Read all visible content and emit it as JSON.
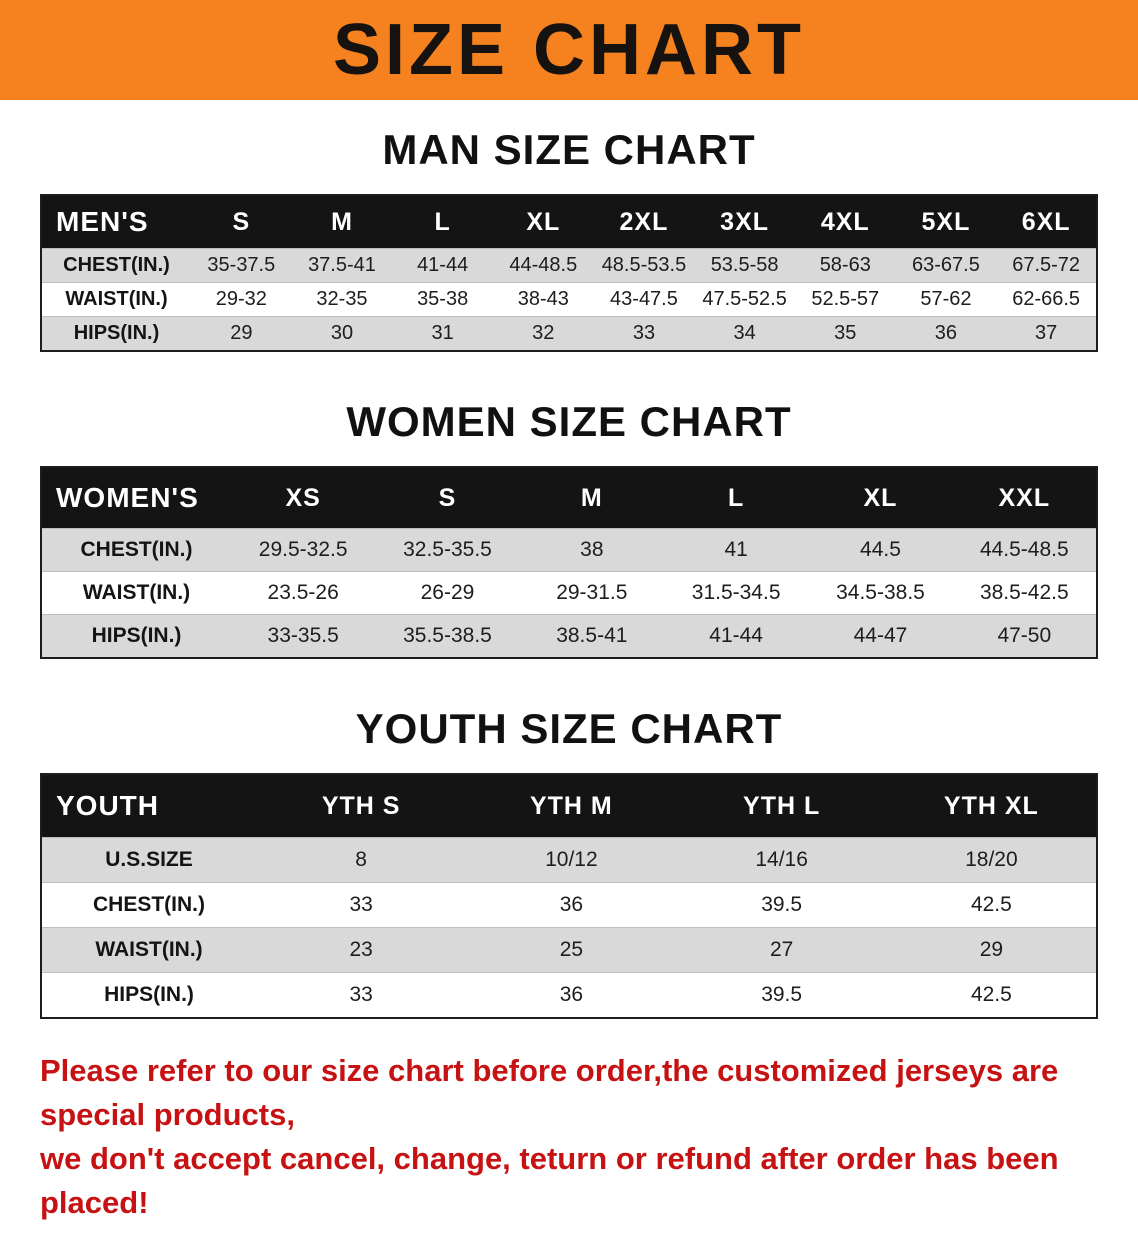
{
  "banner": {
    "title": "SIZE CHART",
    "bg_color": "#f5821e"
  },
  "colors": {
    "table_header_bg": "#141414",
    "row_stripe": "#d9d9d9",
    "disclaimer_red": "#c61212"
  },
  "sections": {
    "men": {
      "heading": "MAN SIZE CHART",
      "table": {
        "header": [
          "MEN'S",
          "S",
          "M",
          "L",
          "XL",
          "2XL",
          "3XL",
          "4XL",
          "5XL",
          "6XL"
        ],
        "rows": [
          [
            "CHEST(IN.)",
            "35-37.5",
            "37.5-41",
            "41-44",
            "44-48.5",
            "48.5-53.5",
            "53.5-58",
            "58-63",
            "63-67.5",
            "67.5-72"
          ],
          [
            "WAIST(IN.)",
            "29-32",
            "32-35",
            "35-38",
            "38-43",
            "43-47.5",
            "47.5-52.5",
            "52.5-57",
            "57-62",
            "62-66.5"
          ],
          [
            "HIPS(IN.)",
            "29",
            "30",
            "31",
            "32",
            "33",
            "34",
            "35",
            "36",
            "37"
          ]
        ]
      }
    },
    "women": {
      "heading": "WOMEN SIZE CHART",
      "table": {
        "header": [
          "WOMEN'S",
          "XS",
          "S",
          "M",
          "L",
          "XL",
          "XXL"
        ],
        "rows": [
          [
            "CHEST(IN.)",
            "29.5-32.5",
            "32.5-35.5",
            "38",
            "41",
            "44.5",
            "44.5-48.5"
          ],
          [
            "WAIST(IN.)",
            "23.5-26",
            "26-29",
            "29-31.5",
            "31.5-34.5",
            "34.5-38.5",
            "38.5-42.5"
          ],
          [
            "HIPS(IN.)",
            "33-35.5",
            "35.5-38.5",
            "38.5-41",
            "41-44",
            "44-47",
            "47-50"
          ]
        ]
      }
    },
    "youth": {
      "heading": "YOUTH SIZE CHART",
      "table": {
        "header": [
          "YOUTH",
          "YTH S",
          "YTH M",
          "YTH L",
          "YTH XL"
        ],
        "rows": [
          [
            "U.S.SIZE",
            "8",
            "10/12",
            "14/16",
            "18/20"
          ],
          [
            "CHEST(IN.)",
            "33",
            "36",
            "39.5",
            "42.5"
          ],
          [
            "WAIST(IN.)",
            "23",
            "25",
            "27",
            "29"
          ],
          [
            "HIPS(IN.)",
            "33",
            "36",
            "39.5",
            "42.5"
          ]
        ]
      }
    }
  },
  "disclaimer": {
    "line1": "Please refer to our size chart before order,the customized jerseys are special products,",
    "line2": "we don't accept cancel, change, teturn or refund after order has been placed!"
  }
}
